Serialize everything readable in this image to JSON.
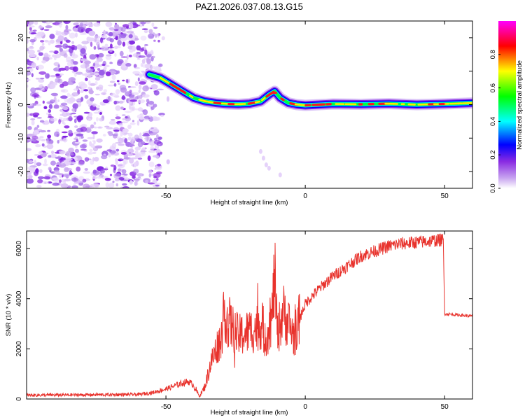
{
  "title": "PAZ1.2026.037.08.13.G15",
  "chart_data": [
    {
      "type": "heatmap",
      "name": "spectrogram",
      "xlabel": "Height of straight line (km)",
      "ylabel": "Frequency (Hz)",
      "xlim": [
        -100,
        60
      ],
      "ylim": [
        -25,
        25
      ],
      "xticks": [
        -50,
        0,
        50
      ],
      "yticks": [
        -20,
        -10,
        0,
        10,
        20
      ],
      "colorbar": {
        "label": "Normalized spectral amplitude",
        "range": [
          0,
          1
        ],
        "ticks": [
          0.0,
          0.2,
          0.4,
          0.6,
          0.8
        ],
        "tick_labels": [
          "0.0",
          "0.2",
          "0.4",
          "0.6",
          "0.8"
        ],
        "colors": [
          "#ffffff",
          "#8a2be2",
          "#0000ff",
          "#00ffff",
          "#00ff00",
          "#ffff00",
          "#ff0000",
          "#ff00ff"
        ]
      },
      "ridge": {
        "height_km": [
          -56,
          -52,
          -48,
          -44,
          -40,
          -36,
          -32,
          -28,
          -24,
          -20,
          -16,
          -13,
          -11,
          -9,
          -6,
          -3,
          0,
          5,
          10,
          20,
          30,
          40,
          50,
          60
        ],
        "frequency_hz": [
          9,
          8,
          6,
          4,
          2,
          1,
          0.5,
          0.2,
          0.1,
          0.3,
          1,
          3,
          4,
          2,
          0.5,
          0,
          -0.2,
          0,
          0.2,
          0.1,
          0.3,
          0,
          0.2,
          0.5
        ]
      },
      "noise_region_km": [
        -100,
        -50
      ]
    },
    {
      "type": "line",
      "name": "snr",
      "xlabel": "Height of straight line (km)",
      "ylabel": "SNR (10 * v/v)",
      "xlim": [
        -100,
        60
      ],
      "ylim": [
        0,
        6700
      ],
      "xticks": [
        -50,
        0,
        50
      ],
      "yticks": [
        0,
        2000,
        4000,
        6000
      ],
      "color": "#e8322c",
      "x": [
        -100,
        -60,
        -55,
        -50,
        -45,
        -42,
        -40,
        -38,
        -36,
        -34,
        -32,
        -30,
        -29,
        -28,
        -26,
        -24,
        -22,
        -20,
        -18,
        -16,
        -14,
        -12,
        -11,
        -10,
        -8,
        -6,
        -4,
        -2,
        0,
        5,
        10,
        15,
        20,
        25,
        30,
        35,
        40,
        45,
        49.5,
        50,
        55,
        60
      ],
      "y": [
        150,
        180,
        250,
        400,
        600,
        700,
        550,
        100,
        500,
        1400,
        2000,
        2500,
        3500,
        3200,
        2800,
        2500,
        2600,
        2700,
        2800,
        3000,
        2500,
        3200,
        5000,
        2600,
        3500,
        3000,
        2500,
        3200,
        3800,
        4400,
        4900,
        5300,
        5700,
        5900,
        6100,
        6200,
        6250,
        6300,
        6350,
        3400,
        3350,
        3300
      ]
    }
  ]
}
